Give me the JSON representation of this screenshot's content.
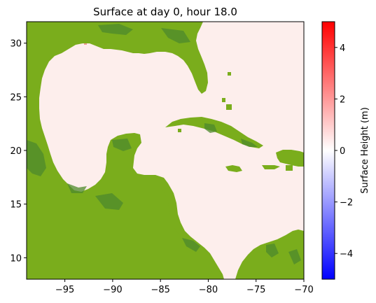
{
  "title": "Surface at day   0, hour 18.0",
  "map": {
    "x_ticks": [
      {
        "value": -95,
        "label": "−95"
      },
      {
        "value": -90,
        "label": "−90"
      },
      {
        "value": -85,
        "label": "−85"
      },
      {
        "value": -80,
        "label": "−80"
      },
      {
        "value": -75,
        "label": "−75"
      },
      {
        "value": -70,
        "label": "−70"
      }
    ],
    "y_ticks": [
      {
        "value": 10,
        "label": "10"
      },
      {
        "value": 15,
        "label": "15"
      },
      {
        "value": 20,
        "label": "20"
      },
      {
        "value": 25,
        "label": "25"
      },
      {
        "value": 30,
        "label": "30"
      }
    ],
    "xlim": [
      -99,
      -70
    ],
    "ylim": [
      8,
      32
    ],
    "colors": {
      "water": "#fdeeec",
      "land": "#7aad1c",
      "land_dark": "#4d8a2c",
      "frame": "#000000"
    }
  },
  "colorbar": {
    "label": "Surface Height (m)",
    "range": [
      -5,
      5
    ],
    "colors": [
      "#0000ff",
      "#ffffff",
      "#ff0000"
    ],
    "ticks": [
      {
        "value": -4,
        "label": "−4"
      },
      {
        "value": -2,
        "label": "−2"
      },
      {
        "value": 0,
        "label": "0"
      },
      {
        "value": 2,
        "label": "2"
      },
      {
        "value": 4,
        "label": "4"
      }
    ]
  }
}
